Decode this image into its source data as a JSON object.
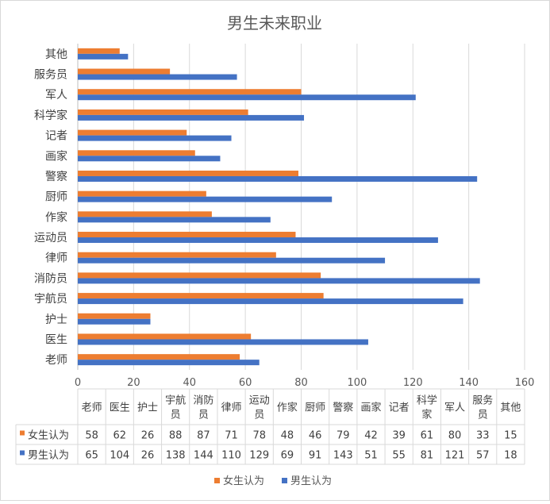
{
  "chart_data": {
    "type": "bar",
    "orientation": "horizontal",
    "title": "男生未来职业",
    "categories": [
      "老师",
      "医生",
      "护士",
      "宇航员",
      "消防员",
      "律师",
      "运动员",
      "作家",
      "厨师",
      "警察",
      "画家",
      "记者",
      "科学家",
      "军人",
      "服务员",
      "其他"
    ],
    "series": [
      {
        "name": "女生认为",
        "color": "#ED7D31",
        "values": [
          58,
          62,
          26,
          88,
          87,
          71,
          78,
          48,
          46,
          79,
          42,
          39,
          61,
          80,
          33,
          15
        ]
      },
      {
        "name": "男生认为",
        "color": "#4472C4",
        "values": [
          65,
          104,
          26,
          138,
          144,
          110,
          129,
          69,
          91,
          143,
          51,
          55,
          81,
          121,
          57,
          18
        ]
      }
    ],
    "xlim": [
      0,
      160
    ],
    "xticks": [
      0,
      20,
      40,
      60,
      80,
      100,
      120,
      140,
      160
    ],
    "grid": true,
    "legend_position": "bottom",
    "data_table": true
  }
}
